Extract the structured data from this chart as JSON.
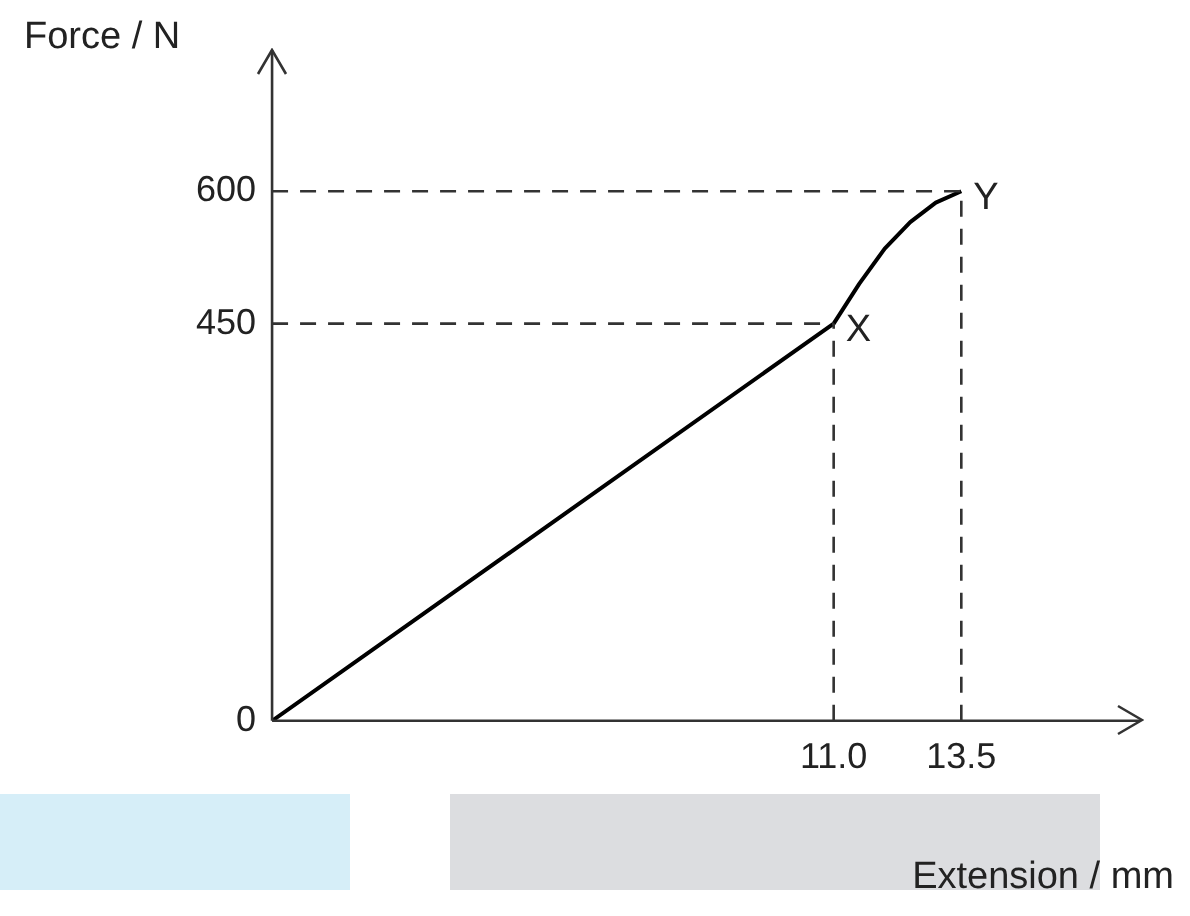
{
  "chart_data": {
    "type": "line",
    "xlabel": "Extension / mm",
    "ylabel": "Force / N",
    "x": [
      0,
      11,
      11.5,
      12,
      12.5,
      13,
      13.5
    ],
    "series": [
      {
        "color": "#000000",
        "values": [
          0,
          450,
          495,
          535,
          565,
          587,
          600
        ]
      }
    ],
    "xlim": [
      0,
      17
    ],
    "ylim": [
      0,
      760
    ],
    "xticks": [
      {
        "value": 11,
        "label": "11.0"
      },
      13.5
    ],
    "yticks": [
      0,
      450,
      600
    ],
    "ref_lines": [
      {
        "axis": "y",
        "value": 450,
        "line_style": "dashed"
      },
      {
        "axis": "y",
        "value": 600,
        "line_style": "dashed"
      },
      {
        "axis": "x",
        "value": 11,
        "line_style": "dashed"
      },
      {
        "axis": "x",
        "value": 13.5,
        "line_style": "dashed"
      }
    ],
    "annotations": [
      {
        "text": "X",
        "x": 11,
        "y": 450
      },
      {
        "text": "Y",
        "x": 13.5,
        "y": 600
      }
    ],
    "grid": false,
    "legend": false,
    "marker": "none",
    "line_style": "solid"
  }
}
